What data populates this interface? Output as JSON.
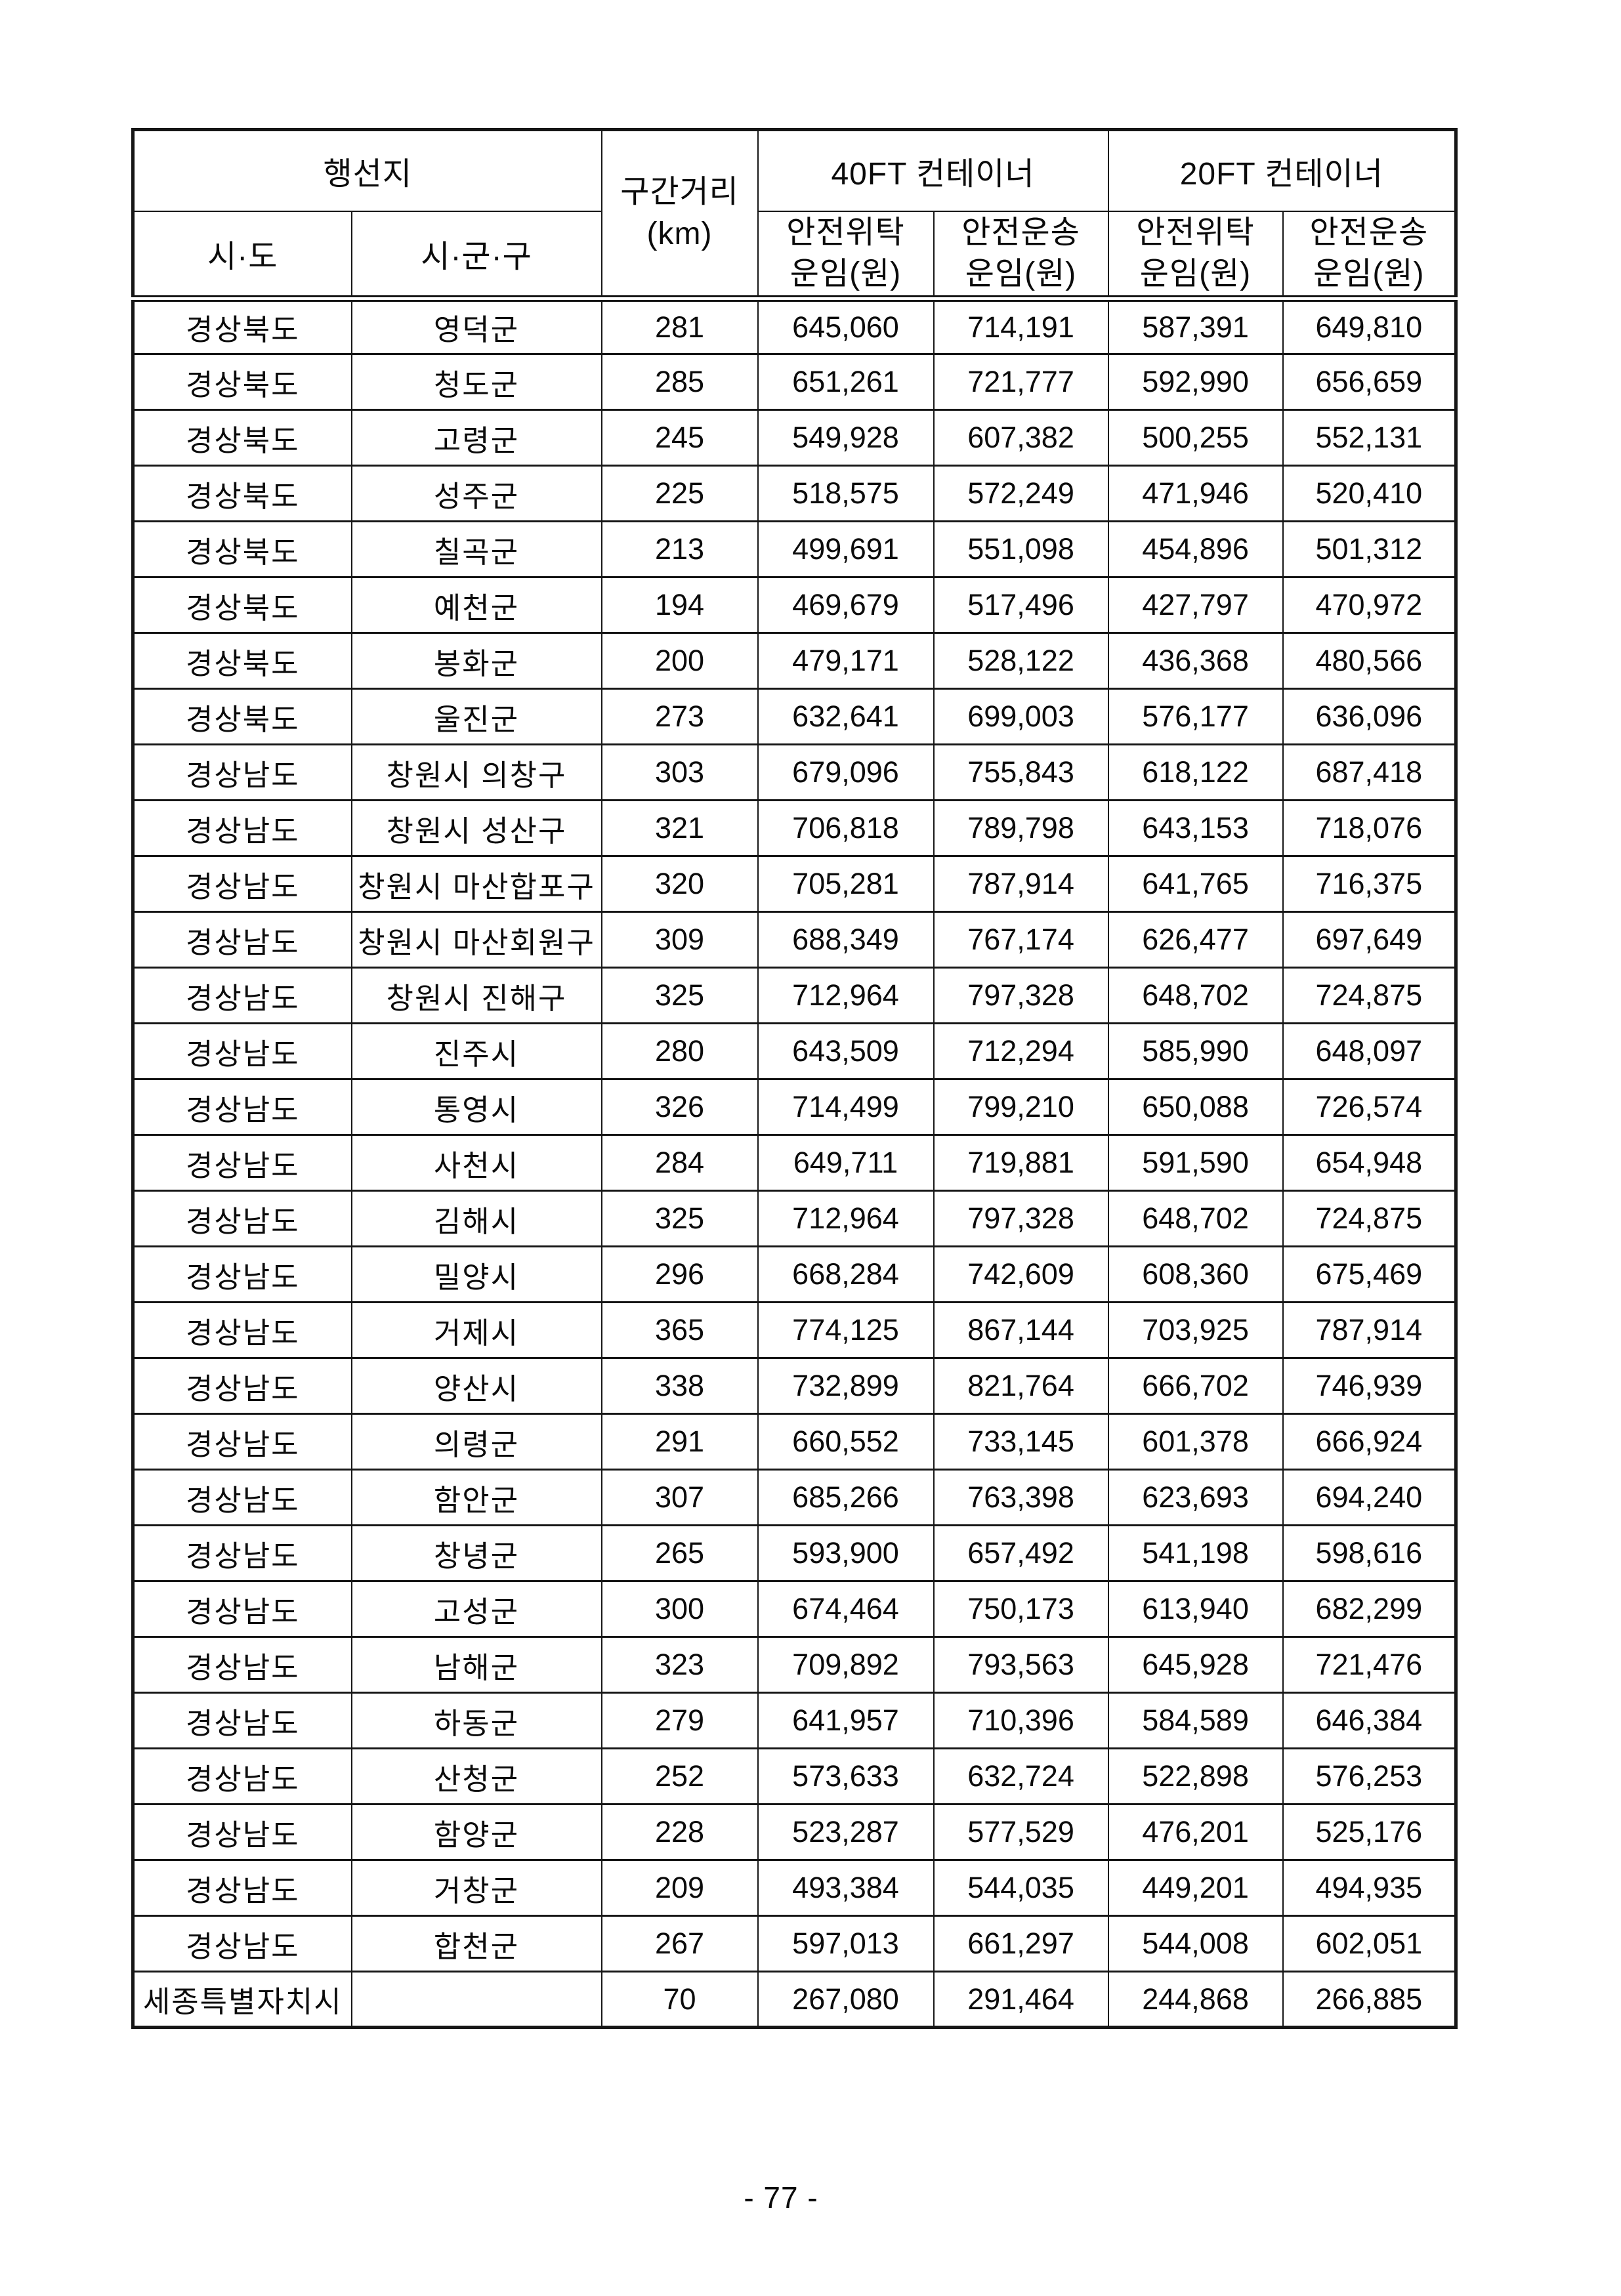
{
  "table": {
    "header": {
      "destination": "행선지",
      "sido": "시·도",
      "sigungu": "시·군·구",
      "distance_line1": "구간거리",
      "distance_line2": "(km)",
      "container_40ft": "40FT 컨테이너",
      "container_20ft": "20FT 컨테이너",
      "fee_consign_line1": "안전위탁",
      "fee_consign_line2": "운임(원)",
      "fee_transport_line1": "안전운송",
      "fee_transport_line2": "운임(원)"
    },
    "rows": [
      [
        "경상북도",
        "영덕군",
        "281",
        "645,060",
        "714,191",
        "587,391",
        "649,810"
      ],
      [
        "경상북도",
        "청도군",
        "285",
        "651,261",
        "721,777",
        "592,990",
        "656,659"
      ],
      [
        "경상북도",
        "고령군",
        "245",
        "549,928",
        "607,382",
        "500,255",
        "552,131"
      ],
      [
        "경상북도",
        "성주군",
        "225",
        "518,575",
        "572,249",
        "471,946",
        "520,410"
      ],
      [
        "경상북도",
        "칠곡군",
        "213",
        "499,691",
        "551,098",
        "454,896",
        "501,312"
      ],
      [
        "경상북도",
        "예천군",
        "194",
        "469,679",
        "517,496",
        "427,797",
        "470,972"
      ],
      [
        "경상북도",
        "봉화군",
        "200",
        "479,171",
        "528,122",
        "436,368",
        "480,566"
      ],
      [
        "경상북도",
        "울진군",
        "273",
        "632,641",
        "699,003",
        "576,177",
        "636,096"
      ],
      [
        "경상남도",
        "창원시 의창구",
        "303",
        "679,096",
        "755,843",
        "618,122",
        "687,418"
      ],
      [
        "경상남도",
        "창원시 성산구",
        "321",
        "706,818",
        "789,798",
        "643,153",
        "718,076"
      ],
      [
        "경상남도",
        "창원시 마산합포구",
        "320",
        "705,281",
        "787,914",
        "641,765",
        "716,375"
      ],
      [
        "경상남도",
        "창원시 마산회원구",
        "309",
        "688,349",
        "767,174",
        "626,477",
        "697,649"
      ],
      [
        "경상남도",
        "창원시 진해구",
        "325",
        "712,964",
        "797,328",
        "648,702",
        "724,875"
      ],
      [
        "경상남도",
        "진주시",
        "280",
        "643,509",
        "712,294",
        "585,990",
        "648,097"
      ],
      [
        "경상남도",
        "통영시",
        "326",
        "714,499",
        "799,210",
        "650,088",
        "726,574"
      ],
      [
        "경상남도",
        "사천시",
        "284",
        "649,711",
        "719,881",
        "591,590",
        "654,948"
      ],
      [
        "경상남도",
        "김해시",
        "325",
        "712,964",
        "797,328",
        "648,702",
        "724,875"
      ],
      [
        "경상남도",
        "밀양시",
        "296",
        "668,284",
        "742,609",
        "608,360",
        "675,469"
      ],
      [
        "경상남도",
        "거제시",
        "365",
        "774,125",
        "867,144",
        "703,925",
        "787,914"
      ],
      [
        "경상남도",
        "양산시",
        "338",
        "732,899",
        "821,764",
        "666,702",
        "746,939"
      ],
      [
        "경상남도",
        "의령군",
        "291",
        "660,552",
        "733,145",
        "601,378",
        "666,924"
      ],
      [
        "경상남도",
        "함안군",
        "307",
        "685,266",
        "763,398",
        "623,693",
        "694,240"
      ],
      [
        "경상남도",
        "창녕군",
        "265",
        "593,900",
        "657,492",
        "541,198",
        "598,616"
      ],
      [
        "경상남도",
        "고성군",
        "300",
        "674,464",
        "750,173",
        "613,940",
        "682,299"
      ],
      [
        "경상남도",
        "남해군",
        "323",
        "709,892",
        "793,563",
        "645,928",
        "721,476"
      ],
      [
        "경상남도",
        "하동군",
        "279",
        "641,957",
        "710,396",
        "584,589",
        "646,384"
      ],
      [
        "경상남도",
        "산청군",
        "252",
        "573,633",
        "632,724",
        "522,898",
        "576,253"
      ],
      [
        "경상남도",
        "함양군",
        "228",
        "523,287",
        "577,529",
        "476,201",
        "525,176"
      ],
      [
        "경상남도",
        "거창군",
        "209",
        "493,384",
        "544,035",
        "449,201",
        "494,935"
      ],
      [
        "경상남도",
        "합천군",
        "267",
        "597,013",
        "661,297",
        "544,008",
        "602,051"
      ],
      [
        "세종특별자치시",
        "",
        "70",
        "267,080",
        "291,464",
        "244,868",
        "266,885"
      ]
    ]
  },
  "footer": {
    "page_number": "- 77 -"
  }
}
